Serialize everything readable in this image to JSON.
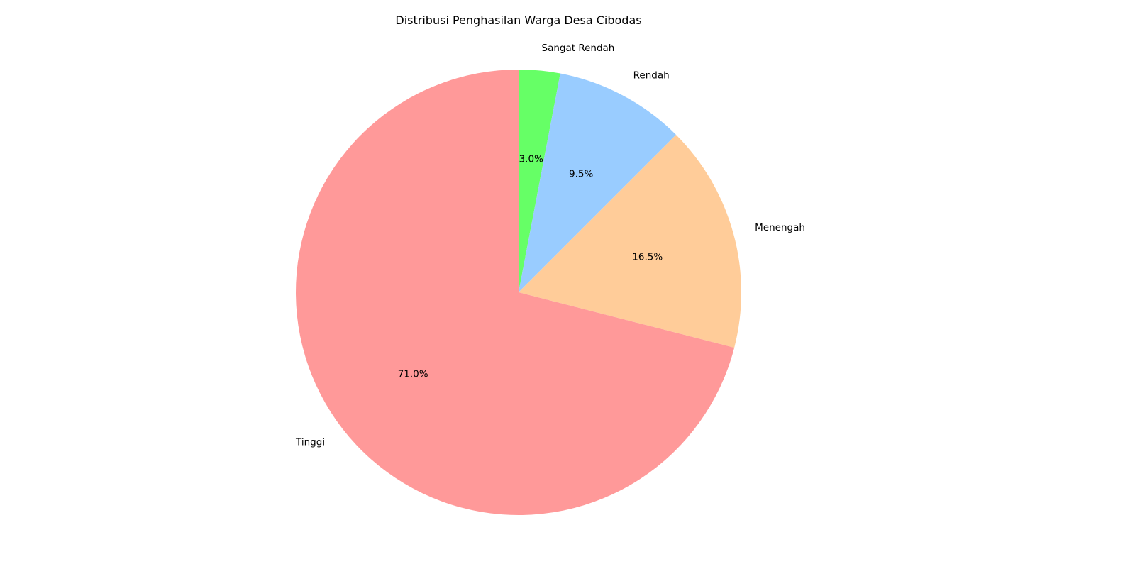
{
  "chart_data": {
    "type": "pie",
    "title": "Distribusi Penghasilan Warga Desa Cibodas",
    "categories": [
      "Sangat Rendah",
      "Rendah",
      "Menengah",
      "Tinggi"
    ],
    "values": [
      3.0,
      9.5,
      16.5,
      71.0
    ],
    "percent_labels": [
      "3.0%",
      "9.5%",
      "16.5%",
      "71.0%"
    ],
    "colors": [
      "#66ff66",
      "#99ccff",
      "#ffcc99",
      "#ff9999"
    ],
    "start_angle_deg": 90,
    "direction": "clockwise"
  }
}
